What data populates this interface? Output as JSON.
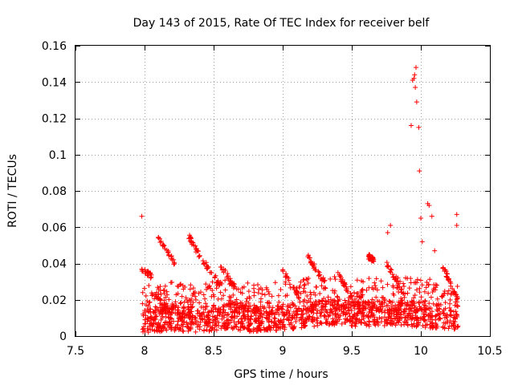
{
  "chart_data": {
    "type": "scatter",
    "title": "Day 143 of 2015, Rate Of TEC Index for receiver belf",
    "xlabel": "GPS time / hours",
    "ylabel": "ROTI / TECUs",
    "xlim": [
      7.5,
      10.5
    ],
    "ylim": [
      0,
      0.16
    ],
    "xticks": [
      "7.5",
      "8",
      "8.5",
      "9",
      "9.5",
      "10",
      "10.5"
    ],
    "yticks": [
      "0",
      "0.02",
      "0.04",
      "0.06",
      "0.08",
      "0.1",
      "0.12",
      "0.14",
      "0.16"
    ],
    "grid": true,
    "marker": "+",
    "series": [
      {
        "name": "ROTI",
        "color": "#ff0000",
        "time_range": [
          7.98,
          10.27
        ],
        "baseline_points": [
          {
            "x": 8.0,
            "y": 0.008
          },
          {
            "x": 8.2,
            "y": 0.01
          },
          {
            "x": 8.4,
            "y": 0.009
          },
          {
            "x": 8.6,
            "y": 0.011
          },
          {
            "x": 8.8,
            "y": 0.009
          },
          {
            "x": 9.0,
            "y": 0.01
          },
          {
            "x": 9.2,
            "y": 0.012
          },
          {
            "x": 9.4,
            "y": 0.013
          },
          {
            "x": 9.6,
            "y": 0.012
          },
          {
            "x": 9.8,
            "y": 0.013
          },
          {
            "x": 10.0,
            "y": 0.012
          },
          {
            "x": 10.2,
            "y": 0.01
          }
        ],
        "highlight_points": [
          {
            "x": 7.98,
            "y": 0.066
          },
          {
            "x": 9.93,
            "y": 0.116
          },
          {
            "x": 9.94,
            "y": 0.141
          },
          {
            "x": 9.95,
            "y": 0.142
          },
          {
            "x": 9.955,
            "y": 0.144
          },
          {
            "x": 9.96,
            "y": 0.137
          },
          {
            "x": 9.965,
            "y": 0.148
          },
          {
            "x": 9.97,
            "y": 0.129
          },
          {
            "x": 9.985,
            "y": 0.115
          },
          {
            "x": 9.99,
            "y": 0.091
          },
          {
            "x": 10.0,
            "y": 0.065
          },
          {
            "x": 10.01,
            "y": 0.052
          },
          {
            "x": 10.05,
            "y": 0.073
          },
          {
            "x": 10.06,
            "y": 0.072
          },
          {
            "x": 10.08,
            "y": 0.066
          },
          {
            "x": 10.1,
            "y": 0.047
          },
          {
            "x": 10.26,
            "y": 0.067
          },
          {
            "x": 10.26,
            "y": 0.061
          },
          {
            "x": 9.78,
            "y": 0.061
          },
          {
            "x": 9.76,
            "y": 0.057
          }
        ],
        "arc_clusters": [
          {
            "x": [
              7.98,
              8.05
            ],
            "y": [
              0.037,
              0.033
            ]
          },
          {
            "x": [
              8.1,
              8.22
            ],
            "y": [
              0.054,
              0.04
            ]
          },
          {
            "x": [
              8.32,
              8.4
            ],
            "y": [
              0.055,
              0.044
            ]
          },
          {
            "x": [
              8.42,
              8.55
            ],
            "y": [
              0.042,
              0.028
            ]
          },
          {
            "x": [
              8.55,
              8.65
            ],
            "y": [
              0.039,
              0.027
            ]
          },
          {
            "x": [
              9.0,
              9.12
            ],
            "y": [
              0.036,
              0.022
            ]
          },
          {
            "x": [
              9.18,
              9.3
            ],
            "y": [
              0.044,
              0.03
            ]
          },
          {
            "x": [
              9.4,
              9.52
            ],
            "y": [
              0.035,
              0.018
            ]
          },
          {
            "x": [
              9.62,
              9.66
            ],
            "y": [
              0.044,
              0.042
            ]
          },
          {
            "x": [
              9.75,
              9.9
            ],
            "y": [
              0.04,
              0.02
            ]
          },
          {
            "x": [
              10.15,
              10.27
            ],
            "y": [
              0.04,
              0.02
            ]
          },
          {
            "x": [
              8.05,
              8.2
            ],
            "y": [
              0.024,
              0.012
            ]
          },
          {
            "x": [
              8.6,
              8.85
            ],
            "y": [
              0.02,
              0.012
            ]
          }
        ]
      }
    ]
  }
}
